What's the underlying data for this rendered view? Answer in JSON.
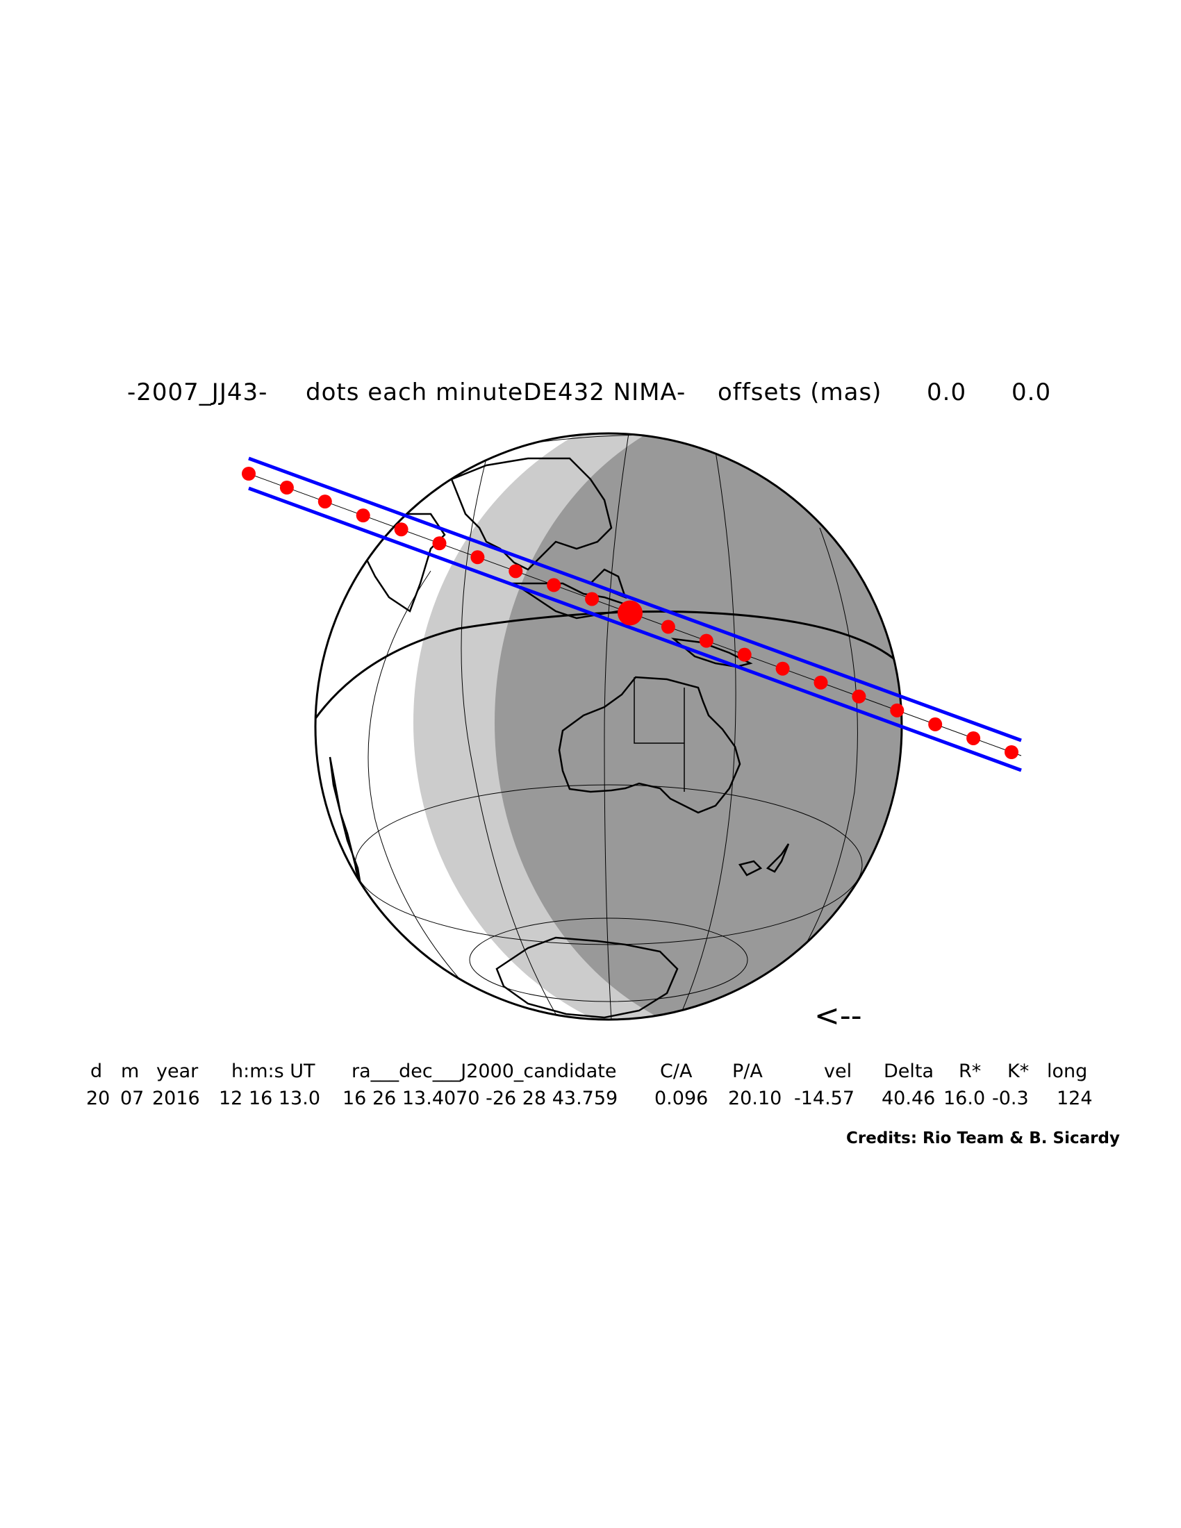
{
  "title": {
    "object": "-2007_JJ43-",
    "description": "dots each minute",
    "ephemeris": "-DE432 NIMA-",
    "offsets_label": "offsets (mas)",
    "offset_ra": "0.0",
    "offset_dec": "0.0"
  },
  "direction_arrow": "<--",
  "table": {
    "headers": [
      "d",
      "m",
      "year",
      "h:m:s UT",
      "ra___dec___J2000_candidate",
      "C/A",
      "P/A",
      "vel",
      "Delta",
      "R*",
      "K*",
      "long"
    ],
    "values": [
      "20",
      "07",
      "2016",
      "12 16 13.0",
      "16 26 13.4070 -26 28 43.759",
      "0.096",
      "20.10",
      "-14.57",
      "40.46",
      "16.0",
      "-0.3",
      "124"
    ]
  },
  "credits": "Credits: Rio Team & B. Sicardy",
  "colors": {
    "path_lines": "#0000ff",
    "dots": "#ff0000",
    "night": "#999999",
    "twilight": "#cccccc",
    "day": "#ffffff"
  }
}
